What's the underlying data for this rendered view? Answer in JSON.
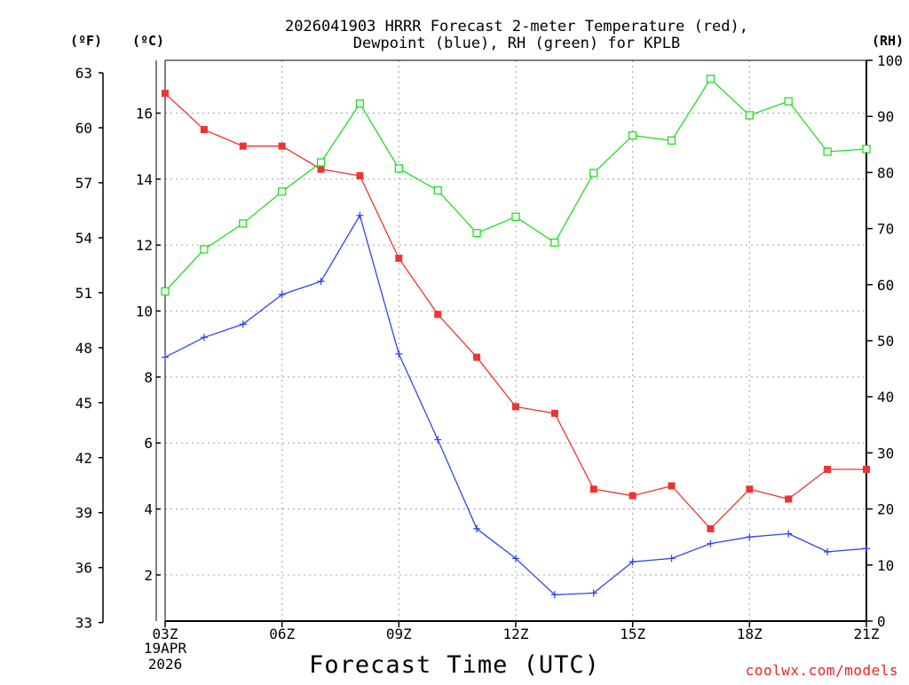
{
  "chart_data": {
    "type": "line",
    "title_line1": "2026041903 HRRR Forecast 2-meter Temperature (red),",
    "title_line2": "Dewpoint (blue), RH (green) for KPLB",
    "xlabel": "Forecast Time (UTC)",
    "credit": "coolwx.com/models",
    "units": {
      "f": "(ºF)",
      "c": "(ºC)",
      "rh": "(RH)"
    },
    "date_label": [
      "19APR",
      "2026"
    ],
    "x_hours": [
      3,
      4,
      5,
      6,
      7,
      8,
      9,
      10,
      11,
      12,
      13,
      14,
      15,
      16,
      17,
      18,
      19,
      20,
      21
    ],
    "x_ticks": [
      {
        "hour": 3,
        "label": "03Z"
      },
      {
        "hour": 6,
        "label": "06Z"
      },
      {
        "hour": 9,
        "label": "09Z"
      },
      {
        "hour": 12,
        "label": "12Z"
      },
      {
        "hour": 15,
        "label": "15Z"
      },
      {
        "hour": 18,
        "label": "18Z"
      },
      {
        "hour": 21,
        "label": "21Z"
      }
    ],
    "xlim": [
      3,
      21
    ],
    "ylim_c": [
      0.6,
      17.6
    ],
    "ylim_rh": [
      0,
      100
    ],
    "yticks_c": [
      2,
      4,
      6,
      8,
      10,
      12,
      14,
      16
    ],
    "yticks_f": [
      33,
      36,
      39,
      42,
      45,
      48,
      51,
      54,
      57,
      60,
      63
    ],
    "yticks_rh": [
      0,
      10,
      20,
      30,
      40,
      50,
      60,
      70,
      80,
      90,
      100
    ],
    "series": [
      {
        "name": "Temperature",
        "axis": "c",
        "color": "#ee3333",
        "marker": "filled-square",
        "values": [
          16.6,
          15.5,
          15.0,
          15.0,
          14.3,
          14.1,
          11.6,
          9.9,
          8.6,
          7.1,
          6.9,
          4.6,
          4.4,
          4.7,
          3.4,
          4.6,
          4.3,
          5.2,
          5.2
        ]
      },
      {
        "name": "Dewpoint",
        "axis": "c",
        "color": "#3344ee",
        "marker": "plus",
        "values": [
          8.6,
          9.2,
          9.6,
          10.5,
          10.9,
          12.9,
          8.7,
          6.1,
          3.4,
          2.5,
          1.4,
          1.45,
          2.4,
          2.5,
          2.95,
          3.15,
          3.25,
          2.7,
          2.8
        ]
      },
      {
        "name": "RH",
        "axis": "rh",
        "color": "#22dd22",
        "marker": "open-square",
        "values": [
          58.8,
          66.3,
          70.9,
          76.6,
          81.8,
          92.3,
          80.7,
          76.8,
          69.2,
          72.1,
          67.5,
          79.9,
          86.6,
          85.7,
          96.7,
          90.2,
          92.7,
          83.7,
          84.2
        ]
      }
    ]
  }
}
